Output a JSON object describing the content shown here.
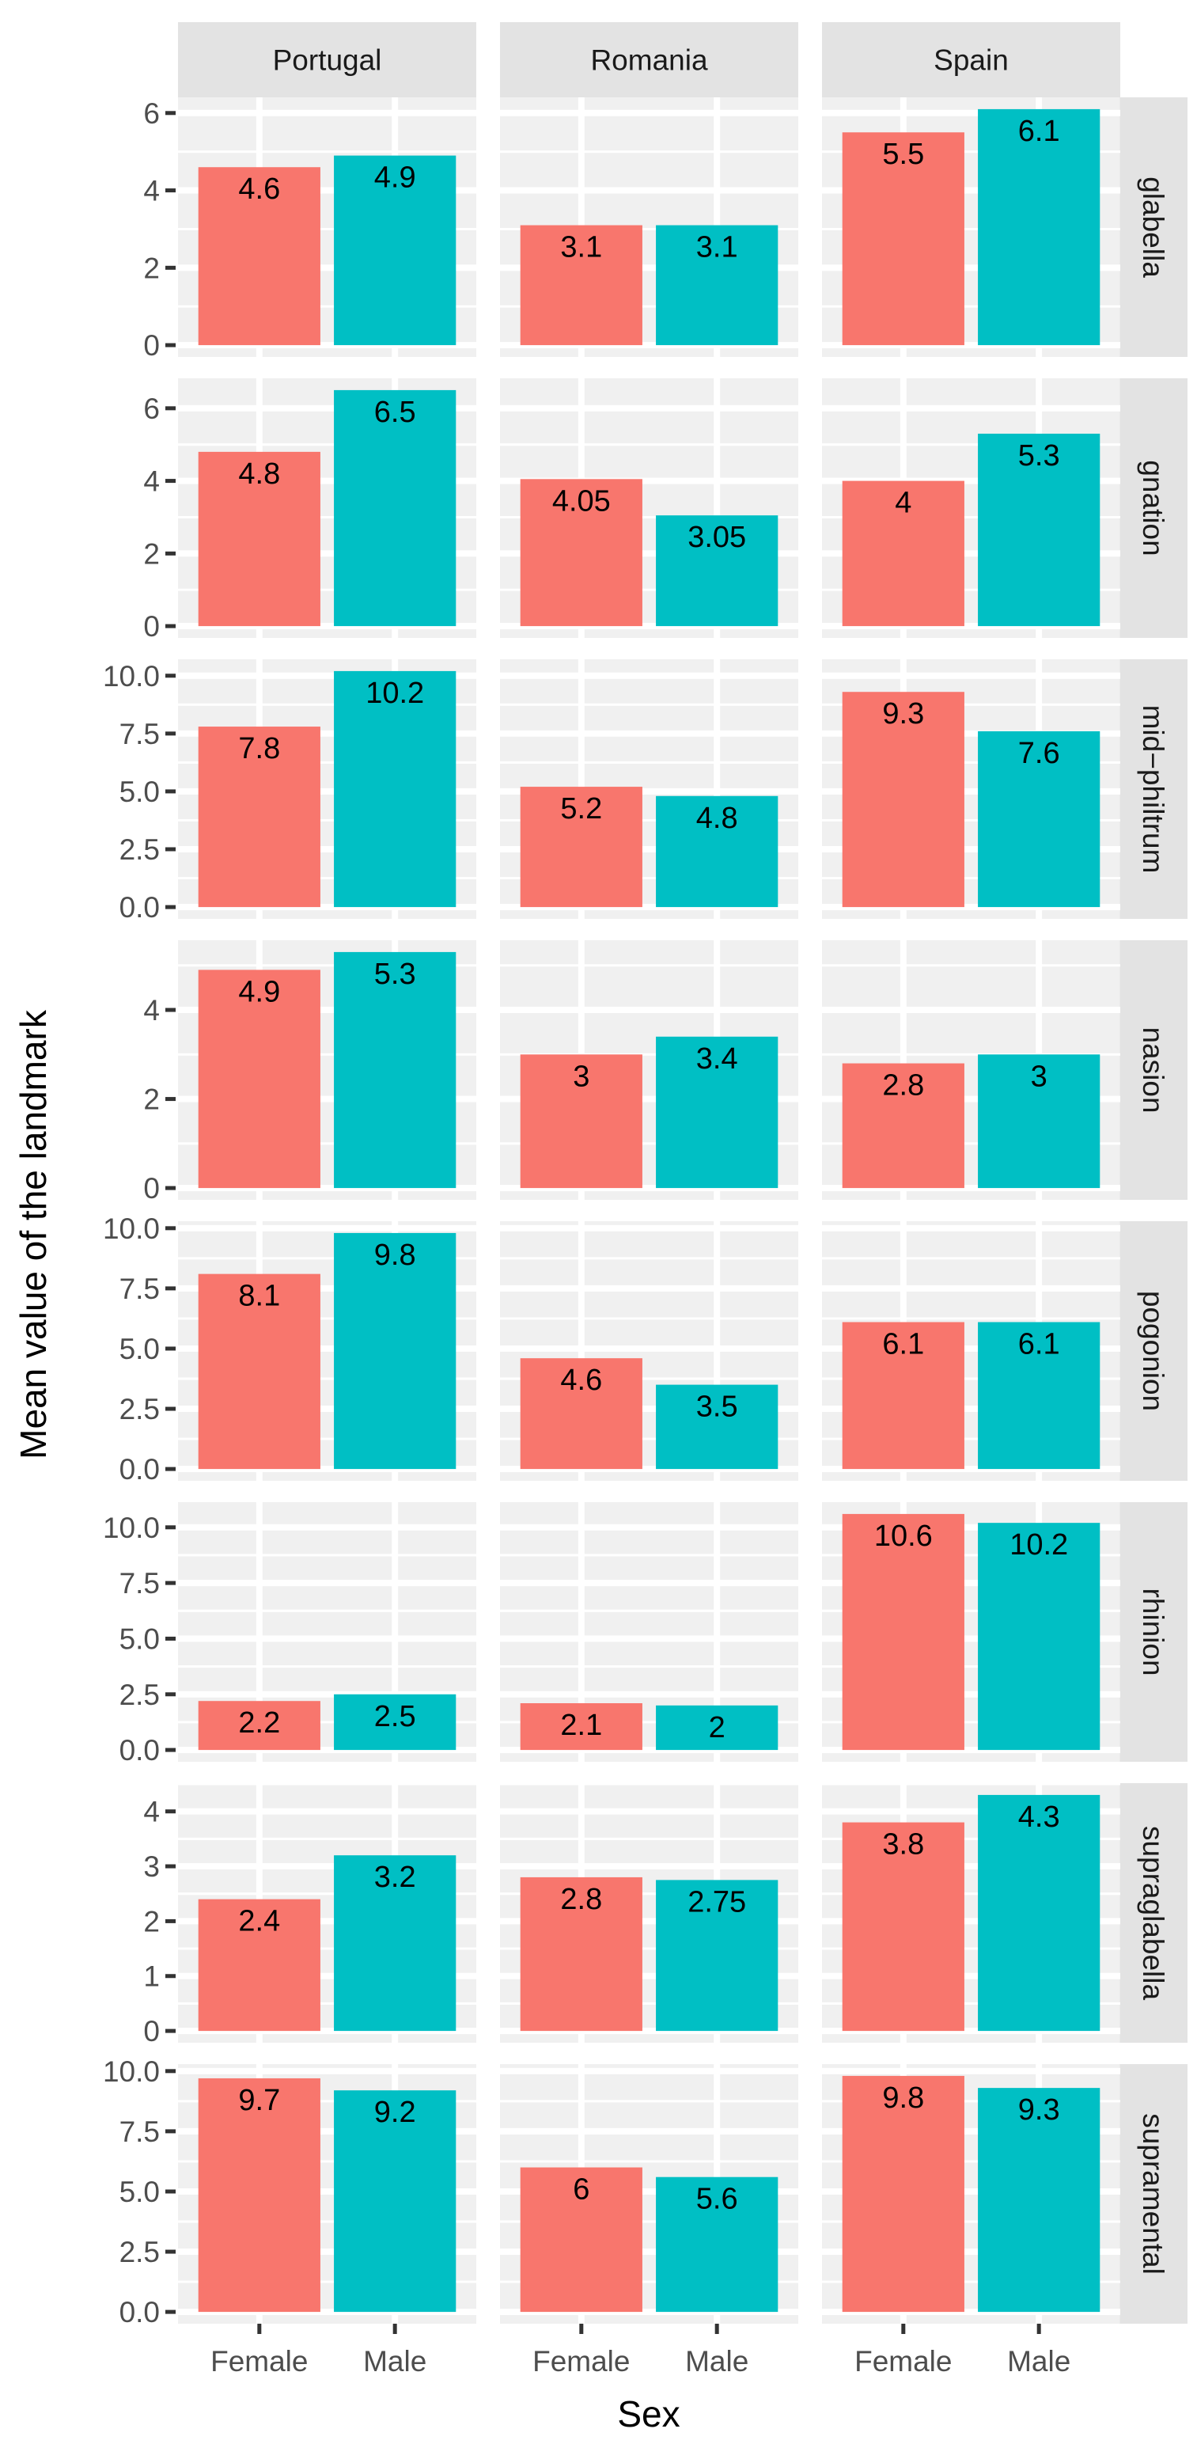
{
  "chart_data": {
    "type": "bar",
    "xlabel": "Sex",
    "ylabel": "Mean value of the landmark",
    "categories": [
      "Female",
      "Male"
    ],
    "columns": [
      "Portugal",
      "Romania",
      "Spain"
    ],
    "fill_colors": {
      "Female": "#F8766D",
      "Male": "#00BFC4"
    },
    "grid": true,
    "rows": [
      {
        "name": "glabella",
        "yticks": [
          0,
          2,
          4,
          6
        ],
        "ytick_labels": [
          "0",
          "2",
          "4",
          "6"
        ],
        "values": {
          "Portugal": [
            4.6,
            4.9
          ],
          "Romania": [
            3.1,
            3.1
          ],
          "Spain": [
            5.5,
            6.1
          ]
        },
        "labels": {
          "Portugal": [
            "4.6",
            "4.9"
          ],
          "Romania": [
            "3.1",
            "3.1"
          ],
          "Spain": [
            "5.5",
            "6.1"
          ]
        }
      },
      {
        "name": "gnation",
        "yticks": [
          0,
          2,
          4,
          6
        ],
        "ytick_labels": [
          "0",
          "2",
          "4",
          "6"
        ],
        "values": {
          "Portugal": [
            4.8,
            6.5
          ],
          "Romania": [
            4.05,
            3.05
          ],
          "Spain": [
            4,
            5.3
          ]
        },
        "labels": {
          "Portugal": [
            "4.8",
            "6.5"
          ],
          "Romania": [
            "4.05",
            "3.05"
          ],
          "Spain": [
            "4",
            "5.3"
          ]
        }
      },
      {
        "name": "mid−philtrum",
        "yticks": [
          0,
          2.5,
          5,
          7.5,
          10
        ],
        "ytick_labels": [
          "0.0",
          "2.5",
          "5.0",
          "7.5",
          "10.0"
        ],
        "values": {
          "Portugal": [
            7.8,
            10.2
          ],
          "Romania": [
            5.2,
            4.8
          ],
          "Spain": [
            9.3,
            7.6
          ]
        },
        "labels": {
          "Portugal": [
            "7.8",
            "10.2"
          ],
          "Romania": [
            "5.2",
            "4.8"
          ],
          "Spain": [
            "9.3",
            "7.6"
          ]
        }
      },
      {
        "name": "nasion",
        "yticks": [
          0,
          2,
          4
        ],
        "ytick_labels": [
          "0",
          "2",
          "4"
        ],
        "values": {
          "Portugal": [
            4.9,
            5.3
          ],
          "Romania": [
            3,
            3.4
          ],
          "Spain": [
            2.8,
            3
          ]
        },
        "labels": {
          "Portugal": [
            "4.9",
            "5.3"
          ],
          "Romania": [
            "3",
            "3.4"
          ],
          "Spain": [
            "2.8",
            "3"
          ]
        }
      },
      {
        "name": "pogonion",
        "yticks": [
          0,
          2.5,
          5,
          7.5,
          10
        ],
        "ytick_labels": [
          "0.0",
          "2.5",
          "5.0",
          "7.5",
          "10.0"
        ],
        "values": {
          "Portugal": [
            8.1,
            9.8
          ],
          "Romania": [
            4.6,
            3.5
          ],
          "Spain": [
            6.1,
            6.1
          ]
        },
        "labels": {
          "Portugal": [
            "8.1",
            "9.8"
          ],
          "Romania": [
            "4.6",
            "3.5"
          ],
          "Spain": [
            "6.1",
            "6.1"
          ]
        }
      },
      {
        "name": "rhinion",
        "yticks": [
          0,
          2.5,
          5,
          7.5,
          10
        ],
        "ytick_labels": [
          "0.0",
          "2.5",
          "5.0",
          "7.5",
          "10.0"
        ],
        "values": {
          "Portugal": [
            2.2,
            2.5
          ],
          "Romania": [
            2.1,
            2
          ],
          "Spain": [
            10.6,
            10.2
          ]
        },
        "labels": {
          "Portugal": [
            "2.2",
            "2.5"
          ],
          "Romania": [
            "2.1",
            "2"
          ],
          "Spain": [
            "10.6",
            "10.2"
          ]
        }
      },
      {
        "name": "supraglabella",
        "yticks": [
          0,
          1,
          2,
          3,
          4
        ],
        "ytick_labels": [
          "0",
          "1",
          "2",
          "3",
          "4"
        ],
        "values": {
          "Portugal": [
            2.4,
            3.2
          ],
          "Romania": [
            2.8,
            2.75
          ],
          "Spain": [
            3.8,
            4.3
          ]
        },
        "labels": {
          "Portugal": [
            "2.4",
            "3.2"
          ],
          "Romania": [
            "2.8",
            "2.75"
          ],
          "Spain": [
            "3.8",
            "4.3"
          ]
        }
      },
      {
        "name": "supramental",
        "yticks": [
          0,
          2.5,
          5,
          7.5,
          10
        ],
        "ytick_labels": [
          "0.0",
          "2.5",
          "5.0",
          "7.5",
          "10.0"
        ],
        "values": {
          "Portugal": [
            9.7,
            9.2
          ],
          "Romania": [
            6,
            5.6
          ],
          "Spain": [
            9.8,
            9.3
          ]
        },
        "labels": {
          "Portugal": [
            "9.7",
            "9.2"
          ],
          "Romania": [
            "6",
            "5.6"
          ],
          "Spain": [
            "9.8",
            "9.3"
          ]
        }
      }
    ]
  }
}
